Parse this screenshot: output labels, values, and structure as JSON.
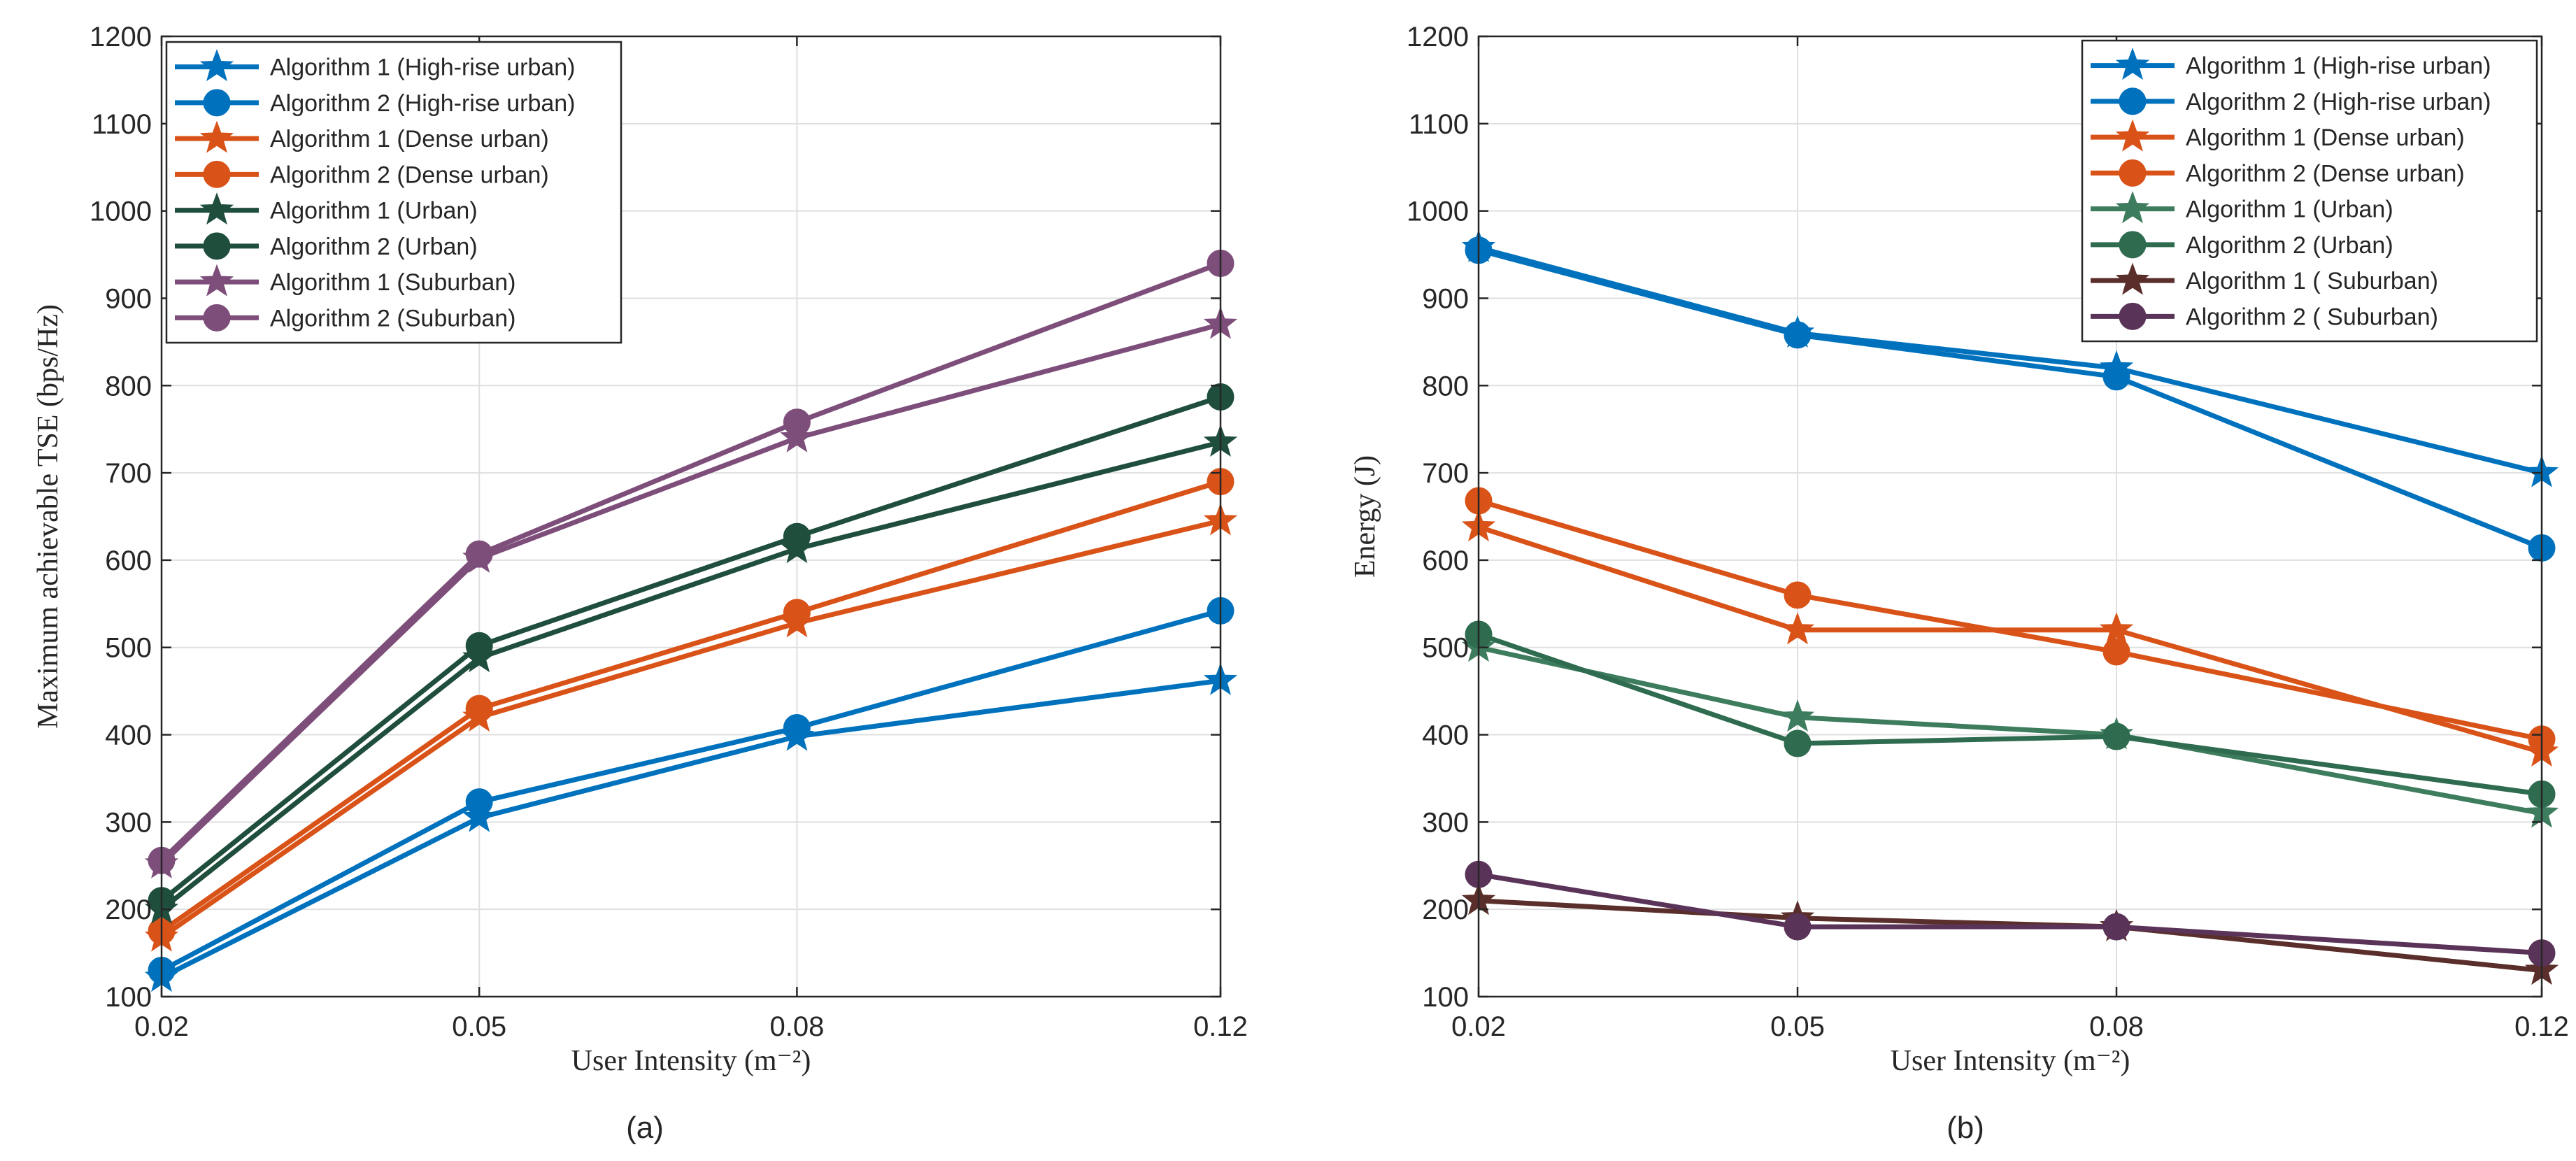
{
  "chart_data": [
    {
      "type": "line",
      "caption": "(a)",
      "title": "",
      "xlabel": "User Intensity",
      "xlabel_unit": "(m⁻²)",
      "ylabel": "Maximum achievable TSE (bps/Hz)",
      "x": [
        0.02,
        0.05,
        0.08,
        0.12
      ],
      "x_tick_labels": [
        "0.02",
        "0.05",
        "0.08",
        "0.12"
      ],
      "ylim": [
        100,
        1200
      ],
      "y_ticks": [
        100,
        200,
        300,
        400,
        500,
        600,
        700,
        800,
        900,
        1000,
        1100,
        1200
      ],
      "grid": true,
      "legend_position": "top-left",
      "series": [
        {
          "name": "Algorithm 1 (High-rise urban)",
          "marker": "star",
          "color": "#0072BD",
          "values": [
            122,
            305,
            398,
            462
          ]
        },
        {
          "name": "Algorithm 2 (High-rise urban)",
          "marker": "circle",
          "color": "#0072BD",
          "values": [
            130,
            323,
            408,
            542
          ]
        },
        {
          "name": "Algorithm 1 (Dense urban)",
          "marker": "star",
          "color": "#D95319",
          "values": [
            168,
            420,
            528,
            645
          ]
        },
        {
          "name": "Algorithm 2 (Dense urban)",
          "marker": "circle",
          "color": "#D95319",
          "values": [
            175,
            430,
            540,
            690
          ]
        },
        {
          "name": "Algorithm 1 (Urban)",
          "marker": "star",
          "color": "#1F4E3D",
          "values": [
            200,
            488,
            613,
            735
          ]
        },
        {
          "name": "Algorithm 2 (Urban)",
          "marker": "circle",
          "color": "#1F4E3D",
          "values": [
            210,
            502,
            627,
            787
          ]
        },
        {
          "name": "Algorithm 1 (Suburban)",
          "marker": "star",
          "color": "#7E4E7B",
          "values": [
            252,
            602,
            740,
            870
          ]
        },
        {
          "name": "Algorithm 2 (Suburban)",
          "marker": "circle",
          "color": "#7E4E7B",
          "values": [
            256,
            607,
            758,
            940
          ]
        }
      ]
    },
    {
      "type": "line",
      "caption": "(b)",
      "title": "",
      "xlabel": "User Intensity",
      "xlabel_unit": "(m⁻²)",
      "ylabel": "Energy (J)",
      "x": [
        0.02,
        0.05,
        0.08,
        0.12
      ],
      "x_tick_labels": [
        "0.02",
        "0.05",
        "0.08",
        "0.12"
      ],
      "ylim": [
        100,
        1200
      ],
      "y_ticks": [
        100,
        200,
        300,
        400,
        500,
        600,
        700,
        800,
        900,
        1000,
        1100,
        1200
      ],
      "grid": true,
      "legend_position": "top-right",
      "series": [
        {
          "name": "Algorithm 1 (High-rise urban)",
          "marker": "star",
          "color": "#0072BD",
          "values": [
            958,
            860,
            820,
            700
          ]
        },
        {
          "name": "Algorithm 2 (High-rise urban)",
          "marker": "circle",
          "color": "#0072BD",
          "values": [
            955,
            858,
            810,
            614
          ]
        },
        {
          "name": "Algorithm 1 (Dense urban)",
          "marker": "star",
          "color": "#D95319",
          "values": [
            638,
            520,
            520,
            380
          ]
        },
        {
          "name": "Algorithm 2 (Dense urban)",
          "marker": "circle",
          "color": "#D95319",
          "values": [
            668,
            560,
            495,
            395
          ]
        },
        {
          "name": "Algorithm 1 (Urban)",
          "marker": "star",
          "color": "#3E7C5E",
          "values": [
            500,
            420,
            400,
            310
          ]
        },
        {
          "name": "Algorithm 2 (Urban)",
          "marker": "circle",
          "color": "#2E6B4F",
          "values": [
            515,
            390,
            398,
            332
          ]
        },
        {
          "name": "Algorithm 1 ( Suburban)",
          "marker": "star",
          "color": "#5A2E2A",
          "values": [
            210,
            190,
            180,
            130
          ]
        },
        {
          "name": "Algorithm 2 ( Suburban)",
          "marker": "circle",
          "color": "#5A3358",
          "values": [
            240,
            180,
            180,
            150
          ]
        }
      ]
    }
  ]
}
